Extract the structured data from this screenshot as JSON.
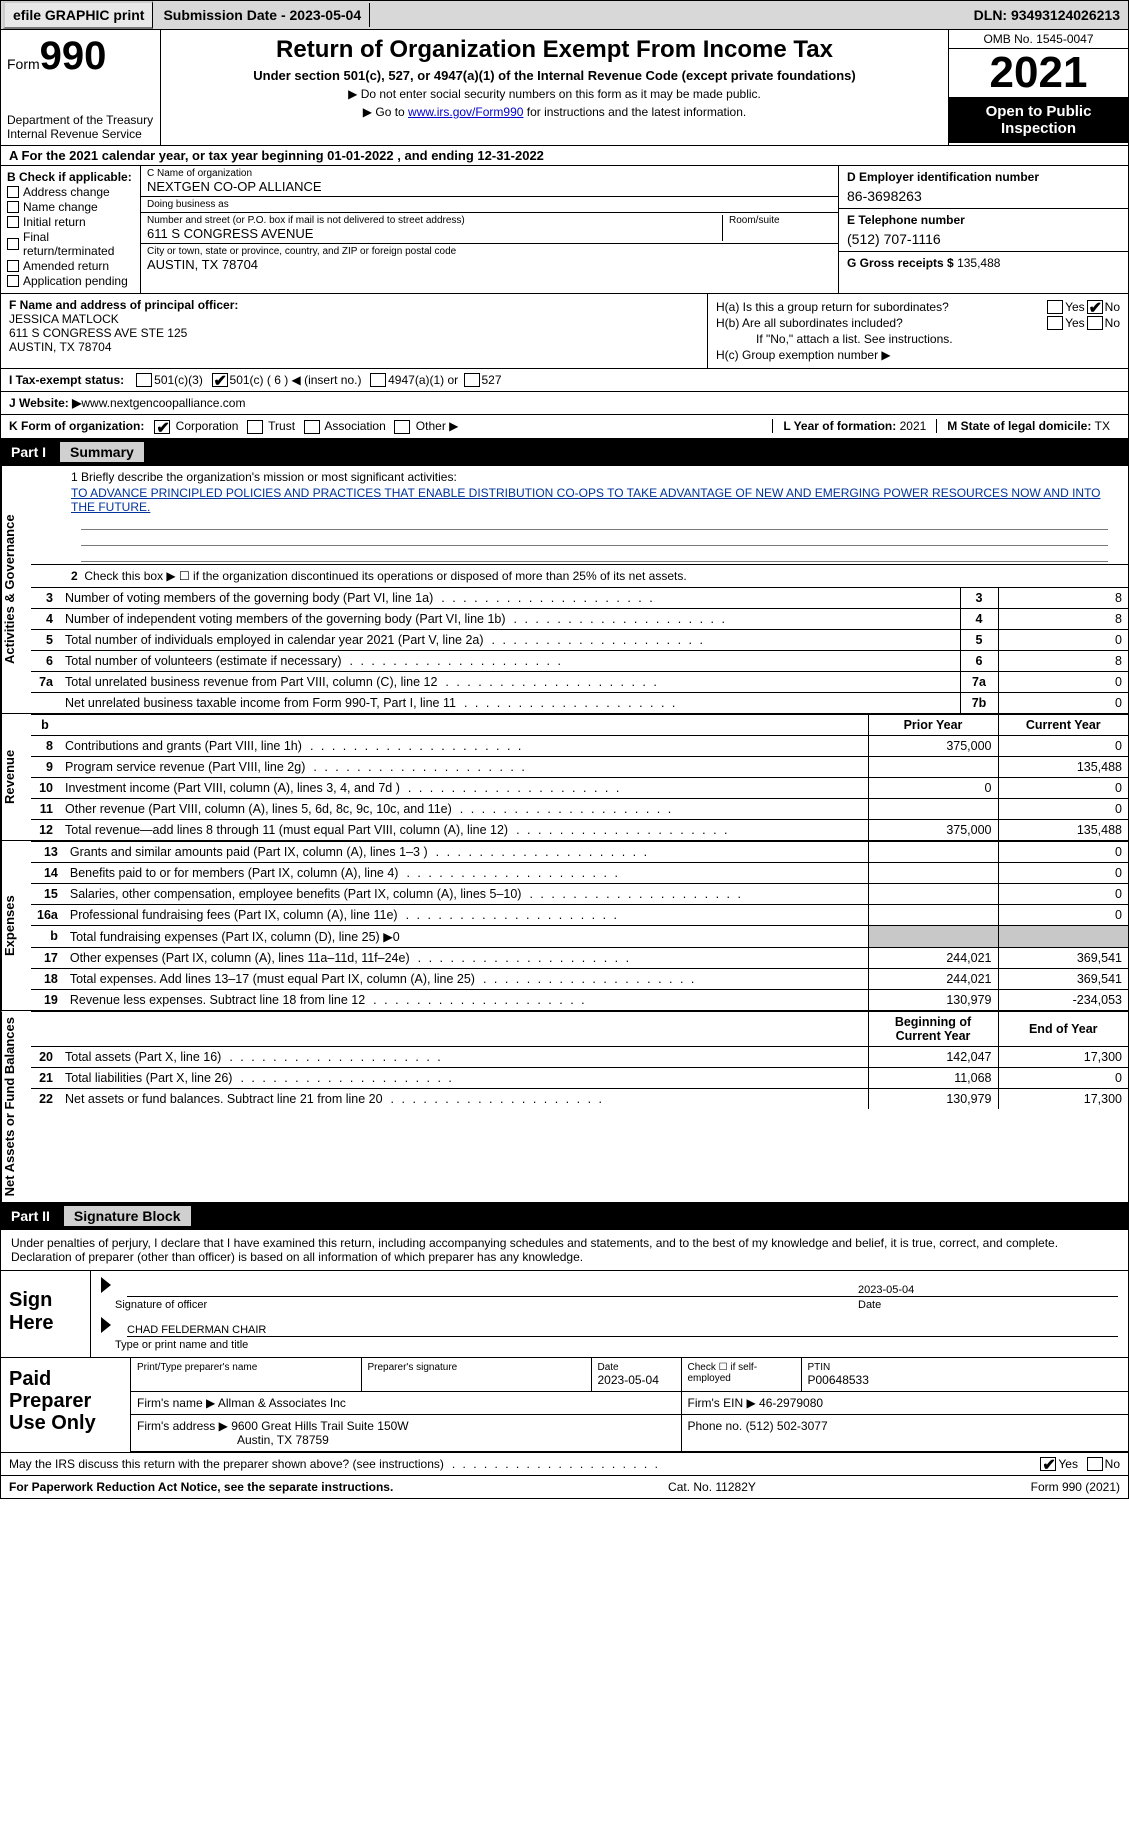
{
  "colors": {
    "link": "#0000cc",
    "bar_bg": "#000000",
    "bar_fg": "#ffffff",
    "shade": "#c8c8c8"
  },
  "topbar": {
    "efile": "efile GRAPHIC print",
    "submission_label": "Submission Date - ",
    "submission_date": "2023-05-04",
    "dln_label": "DLN: ",
    "dln": "93493124026213"
  },
  "header": {
    "form_word": "Form",
    "form_no": "990",
    "dept": "Department of the Treasury",
    "irs": "Internal Revenue Service",
    "title": "Return of Organization Exempt From Income Tax",
    "sub": "Under section 501(c), 527, or 4947(a)(1) of the Internal Revenue Code (except private foundations)",
    "note1": "▶ Do not enter social security numbers on this form as it may be made public.",
    "note2_a": "▶ Go to ",
    "note2_link": "www.irs.gov/Form990",
    "note2_b": " for instructions and the latest information.",
    "omb": "OMB No. 1545-0047",
    "year": "2021",
    "open": "Open to Public Inspection"
  },
  "rowA": "A  For the 2021 calendar year, or tax year beginning 01-01-2022    , and ending 12-31-2022",
  "B": {
    "title": "B Check if applicable:",
    "items": [
      "Address change",
      "Name change",
      "Initial return",
      "Final return/terminated",
      "Amended return",
      "Application pending"
    ]
  },
  "C": {
    "name_lbl": "C Name of organization",
    "name": "NEXTGEN CO-OP ALLIANCE",
    "dba_lbl": "Doing business as",
    "dba": "",
    "street_lbl": "Number and street (or P.O. box if mail is not delivered to street address)",
    "street": "611 S CONGRESS AVENUE",
    "room_lbl": "Room/suite",
    "city_lbl": "City or town, state or province, country, and ZIP or foreign postal code",
    "city": "AUSTIN, TX  78704"
  },
  "D": {
    "ein_lbl": "D Employer identification number",
    "ein": "86-3698263",
    "phone_lbl": "E Telephone number",
    "phone": "(512) 707-1116",
    "gross_lbl": "G Gross receipts $ ",
    "gross": "135,488"
  },
  "F": {
    "lbl": "F Name and address of principal officer:",
    "name": "JESSICA MATLOCK",
    "addr1": "611 S CONGRESS AVE STE 125",
    "addr2": "AUSTIN, TX  78704"
  },
  "H": {
    "a_lbl": "H(a)  Is this a group return for subordinates?",
    "b_lbl": "H(b)  Are all subordinates included?",
    "b_note": "If \"No,\" attach a list. See instructions.",
    "c_lbl": "H(c)  Group exemption number ▶",
    "yes": "Yes",
    "no": "No"
  },
  "I": {
    "lbl": "I    Tax-exempt status:",
    "o1": "501(c)(3)",
    "o2": "501(c) ( 6 ) ◀ (insert no.)",
    "o3": "4947(a)(1) or",
    "o4": "527"
  },
  "J": {
    "lbl": "J   Website: ▶  ",
    "val": "www.nextgencoopalliance.com"
  },
  "K": {
    "lbl": "K Form of organization:",
    "opts": [
      "Corporation",
      "Trust",
      "Association",
      "Other ▶"
    ],
    "L_lbl": "L Year of formation: ",
    "L_val": "2021",
    "M_lbl": "M State of legal domicile: ",
    "M_val": "TX"
  },
  "partI": {
    "tag": "Part I",
    "title": "Summary"
  },
  "side": {
    "act": "Activities & Governance",
    "rev": "Revenue",
    "exp": "Expenses",
    "net": "Net Assets or Fund Balances"
  },
  "mission": {
    "q": "1   Briefly describe the organization's mission or most significant activities:",
    "a": "TO ADVANCE PRINCIPLED POLICIES AND PRACTICES THAT ENABLE DISTRIBUTION CO-OPS TO TAKE ADVANTAGE OF NEW AND EMERGING POWER RESOURCES NOW AND INTO THE FUTURE."
  },
  "line2": "Check this box ▶ ☐  if the organization discontinued its operations or disposed of more than 25% of its net assets.",
  "govRows": [
    {
      "n": "3",
      "t": "Number of voting members of the governing body (Part VI, line 1a)",
      "b": "3",
      "v": "8"
    },
    {
      "n": "4",
      "t": "Number of independent voting members of the governing body (Part VI, line 1b)",
      "b": "4",
      "v": "8"
    },
    {
      "n": "5",
      "t": "Total number of individuals employed in calendar year 2021 (Part V, line 2a)",
      "b": "5",
      "v": "0"
    },
    {
      "n": "6",
      "t": "Total number of volunteers (estimate if necessary)",
      "b": "6",
      "v": "8"
    },
    {
      "n": "7a",
      "t": "Total unrelated business revenue from Part VIII, column (C), line 12",
      "b": "7a",
      "v": "0"
    },
    {
      "n": "",
      "t": "Net unrelated business taxable income from Form 990-T, Part I, line 11",
      "b": "7b",
      "v": "0"
    }
  ],
  "twoColHdr": {
    "n": "b",
    "prior": "Prior Year",
    "curr": "Current Year"
  },
  "revRows": [
    {
      "n": "8",
      "t": "Contributions and grants (Part VIII, line 1h)",
      "p": "375,000",
      "c": "0"
    },
    {
      "n": "9",
      "t": "Program service revenue (Part VIII, line 2g)",
      "p": "",
      "c": "135,488"
    },
    {
      "n": "10",
      "t": "Investment income (Part VIII, column (A), lines 3, 4, and 7d )",
      "p": "0",
      "c": "0"
    },
    {
      "n": "11",
      "t": "Other revenue (Part VIII, column (A), lines 5, 6d, 8c, 9c, 10c, and 11e)",
      "p": "",
      "c": "0"
    },
    {
      "n": "12",
      "t": "Total revenue—add lines 8 through 11 (must equal Part VIII, column (A), line 12)",
      "p": "375,000",
      "c": "135,488"
    }
  ],
  "expRows": [
    {
      "n": "13",
      "t": "Grants and similar amounts paid (Part IX, column (A), lines 1–3 )",
      "p": "",
      "c": "0"
    },
    {
      "n": "14",
      "t": "Benefits paid to or for members (Part IX, column (A), line 4)",
      "p": "",
      "c": "0"
    },
    {
      "n": "15",
      "t": "Salaries, other compensation, employee benefits (Part IX, column (A), lines 5–10)",
      "p": "",
      "c": "0"
    },
    {
      "n": "16a",
      "t": "Professional fundraising fees (Part IX, column (A), line 11e)",
      "p": "",
      "c": "0"
    },
    {
      "n": "b",
      "t": "Total fundraising expenses (Part IX, column (D), line 25) ▶0",
      "p": "SHADE",
      "c": "SHADE"
    },
    {
      "n": "17",
      "t": "Other expenses (Part IX, column (A), lines 11a–11d, 11f–24e)",
      "p": "244,021",
      "c": "369,541"
    },
    {
      "n": "18",
      "t": "Total expenses. Add lines 13–17 (must equal Part IX, column (A), line 25)",
      "p": "244,021",
      "c": "369,541"
    },
    {
      "n": "19",
      "t": "Revenue less expenses. Subtract line 18 from line 12",
      "p": "130,979",
      "c": "-234,053"
    }
  ],
  "netHdr": {
    "prior": "Beginning of Current Year",
    "curr": "End of Year"
  },
  "netRows": [
    {
      "n": "20",
      "t": "Total assets (Part X, line 16)",
      "p": "142,047",
      "c": "17,300"
    },
    {
      "n": "21",
      "t": "Total liabilities (Part X, line 26)",
      "p": "11,068",
      "c": "0"
    },
    {
      "n": "22",
      "t": "Net assets or fund balances. Subtract line 21 from line 20",
      "p": "130,979",
      "c": "17,300"
    }
  ],
  "partII": {
    "tag": "Part II",
    "title": "Signature Block"
  },
  "sigIntro": "Under penalties of perjury, I declare that I have examined this return, including accompanying schedules and statements, and to the best of my knowledge and belief, it is true, correct, and complete. Declaration of preparer (other than officer) is based on all information of which preparer has any knowledge.",
  "sign": {
    "here": "Sign Here",
    "sig_lbl": "Signature of officer",
    "date": "2023-05-04",
    "date_lbl": "Date",
    "name": "CHAD FELDERMAN CHAIR",
    "name_lbl": "Type or print name and title"
  },
  "paid": {
    "title": "Paid Preparer Use Only",
    "h1": "Print/Type preparer's name",
    "h2": "Preparer's signature",
    "h3_lbl": "Date",
    "h3_val": "2023-05-04",
    "h4_lbl": "Check ☐ if self-employed",
    "h5_lbl": "PTIN",
    "h5_val": "P00648533",
    "firm_lbl": "Firm's name    ▶ ",
    "firm": "Allman & Associates Inc",
    "ein_lbl": "Firm's EIN ▶ ",
    "ein": "46-2979080",
    "addr_lbl": "Firm's address ▶ ",
    "addr1": "9600 Great Hills Trail Suite 150W",
    "addr2": "Austin, TX  78759",
    "phone_lbl": "Phone no. ",
    "phone": "(512) 502-3077"
  },
  "discuss": {
    "q": "May the IRS discuss this return with the preparer shown above? (see instructions)",
    "yes": "Yes",
    "no": "No"
  },
  "footer": {
    "left": "For Paperwork Reduction Act Notice, see the separate instructions.",
    "mid": "Cat. No. 11282Y",
    "right": "Form 990 (2021)"
  }
}
